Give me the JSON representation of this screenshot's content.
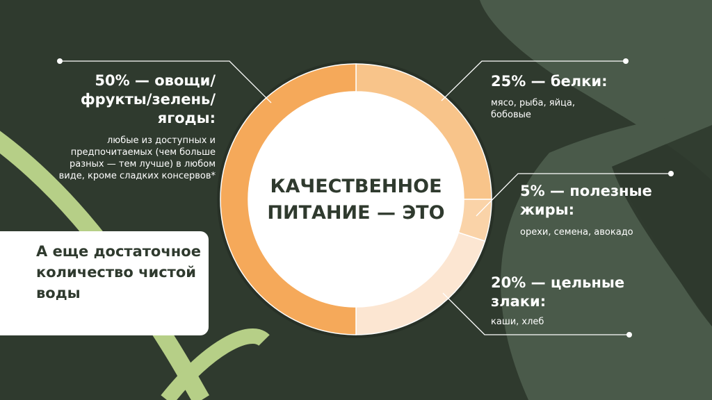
{
  "chart_data": {
    "type": "pie",
    "style": "donut",
    "center_label": "КАЧЕСТВЕННОЕ ПИТАНИЕ — ЭТО",
    "slices": [
      {
        "label": "25% — белки:",
        "value": 25,
        "detail": "мясо, рыба, яйца, бобовые",
        "color": "#f8c48a"
      },
      {
        "label": "5% — полезные жиры:",
        "value": 5,
        "detail": "орехи, семена, авокадо",
        "color": "#fad3a8"
      },
      {
        "label": "20% — цельные злаки:",
        "value": 20,
        "detail": "каши, хлеб",
        "color": "#fce6d2"
      },
      {
        "label": "50% — овощи/ фрукты/зелень/ ягоды:",
        "value": 50,
        "detail": "любые из доступных и предпочитаемых (чем больше разных — тем лучше) в любом виде, кроме сладких консервов*",
        "color": "#f5a95a"
      }
    ]
  },
  "note_box": "А еще достаточное количество чистой воды",
  "colors": {
    "background": "#2f3a2e",
    "leaf": "#4a5a4a",
    "accent_green": "#b6cf87"
  }
}
